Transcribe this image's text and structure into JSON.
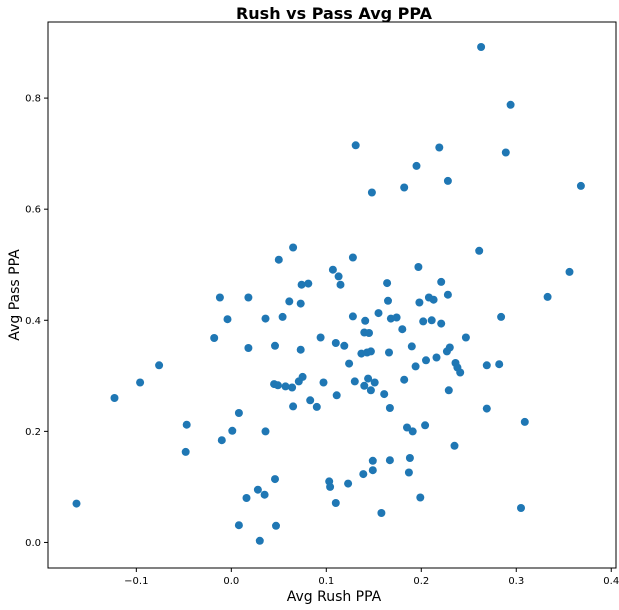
{
  "chart_data": {
    "type": "scatter",
    "title": "Rush vs Pass Avg PPA",
    "xlabel": "Avg Rush PPA",
    "ylabel": "Avg Pass PPA",
    "xlim": [
      -0.193,
      0.405
    ],
    "ylim": [
      -0.046,
      0.937
    ],
    "xticks": [
      -0.1,
      0.0,
      0.1,
      0.2,
      0.3,
      0.4
    ],
    "xtick_labels": [
      "−0.1",
      "0.0",
      "0.1",
      "0.2",
      "0.3",
      "0.4"
    ],
    "yticks": [
      0.0,
      0.2,
      0.4,
      0.6,
      0.8
    ],
    "ytick_labels": [
      "0.0",
      "0.2",
      "0.4",
      "0.6",
      "0.8"
    ],
    "grid": false,
    "marker_color": "#1f77b4",
    "series": [
      {
        "points": [
          [
            0.263,
            0.892
          ],
          [
            0.294,
            0.788
          ],
          [
            0.289,
            0.702
          ],
          [
            0.195,
            0.678
          ],
          [
            0.131,
            0.715
          ],
          [
            0.219,
            0.711
          ],
          [
            0.228,
            0.651
          ],
          [
            0.182,
            0.639
          ],
          [
            0.148,
            0.63
          ],
          [
            0.368,
            0.642
          ],
          [
            0.261,
            0.525
          ],
          [
            0.356,
            0.487
          ],
          [
            0.333,
            0.442
          ],
          [
            0.065,
            0.531
          ],
          [
            0.128,
            0.513
          ],
          [
            0.05,
            0.509
          ],
          [
            0.107,
            0.491
          ],
          [
            0.113,
            0.479
          ],
          [
            0.164,
            0.467
          ],
          [
            0.197,
            0.496
          ],
          [
            0.221,
            0.469
          ],
          [
            0.074,
            0.464
          ],
          [
            0.081,
            0.466
          ],
          [
            0.115,
            0.464
          ],
          [
            -0.012,
            0.441
          ],
          [
            0.018,
            0.441
          ],
          [
            0.061,
            0.434
          ],
          [
            0.073,
            0.43
          ],
          [
            0.165,
            0.435
          ],
          [
            0.198,
            0.432
          ],
          [
            0.208,
            0.441
          ],
          [
            0.213,
            0.437
          ],
          [
            0.228,
            0.446
          ],
          [
            0.284,
            0.406
          ],
          [
            -0.004,
            0.402
          ],
          [
            0.054,
            0.406
          ],
          [
            0.036,
            0.403
          ],
          [
            0.128,
            0.407
          ],
          [
            0.141,
            0.399
          ],
          [
            0.155,
            0.413
          ],
          [
            0.168,
            0.403
          ],
          [
            0.174,
            0.405
          ],
          [
            0.202,
            0.398
          ],
          [
            0.211,
            0.4
          ],
          [
            0.221,
            0.394
          ],
          [
            -0.018,
            0.368
          ],
          [
            0.018,
            0.35
          ],
          [
            0.046,
            0.354
          ],
          [
            0.094,
            0.369
          ],
          [
            0.11,
            0.359
          ],
          [
            0.119,
            0.354
          ],
          [
            0.14,
            0.378
          ],
          [
            0.145,
            0.377
          ],
          [
            0.137,
            0.34
          ],
          [
            0.143,
            0.342
          ],
          [
            0.147,
            0.344
          ],
          [
            0.166,
            0.342
          ],
          [
            0.18,
            0.384
          ],
          [
            0.19,
            0.353
          ],
          [
            0.227,
            0.344
          ],
          [
            0.23,
            0.351
          ],
          [
            0.247,
            0.369
          ],
          [
            0.073,
            0.347
          ],
          [
            0.124,
            0.322
          ],
          [
            0.194,
            0.317
          ],
          [
            0.205,
            0.328
          ],
          [
            0.216,
            0.333
          ],
          [
            0.236,
            0.323
          ],
          [
            0.238,
            0.315
          ],
          [
            0.241,
            0.306
          ],
          [
            0.269,
            0.319
          ],
          [
            0.282,
            0.321
          ],
          [
            -0.076,
            0.319
          ],
          [
            -0.096,
            0.288
          ],
          [
            -0.123,
            0.26
          ],
          [
            0.045,
            0.285
          ],
          [
            0.049,
            0.283
          ],
          [
            0.057,
            0.281
          ],
          [
            0.064,
            0.279
          ],
          [
            0.071,
            0.29
          ],
          [
            0.075,
            0.298
          ],
          [
            0.097,
            0.288
          ],
          [
            0.13,
            0.29
          ],
          [
            0.14,
            0.282
          ],
          [
            0.144,
            0.295
          ],
          [
            0.147,
            0.274
          ],
          [
            0.151,
            0.288
          ],
          [
            0.161,
            0.267
          ],
          [
            0.182,
            0.293
          ],
          [
            0.229,
            0.274
          ],
          [
            0.083,
            0.256
          ],
          [
            0.09,
            0.244
          ],
          [
            0.065,
            0.245
          ],
          [
            0.111,
            0.265
          ],
          [
            0.167,
            0.242
          ],
          [
            0.269,
            0.241
          ],
          [
            0.008,
            0.233
          ],
          [
            -0.047,
            0.212
          ],
          [
            0.001,
            0.201
          ],
          [
            -0.01,
            0.184
          ],
          [
            0.036,
            0.2
          ],
          [
            0.185,
            0.207
          ],
          [
            0.191,
            0.2
          ],
          [
            0.204,
            0.211
          ],
          [
            0.309,
            0.217
          ],
          [
            0.235,
            0.174
          ],
          [
            -0.048,
            0.163
          ],
          [
            0.149,
            0.147
          ],
          [
            0.167,
            0.148
          ],
          [
            0.188,
            0.152
          ],
          [
            0.149,
            0.13
          ],
          [
            0.139,
            0.123
          ],
          [
            0.187,
            0.126
          ],
          [
            0.046,
            0.114
          ],
          [
            0.103,
            0.11
          ],
          [
            0.123,
            0.106
          ],
          [
            0.104,
            0.1
          ],
          [
            0.028,
            0.095
          ],
          [
            0.035,
            0.086
          ],
          [
            0.016,
            0.08
          ],
          [
            0.199,
            0.081
          ],
          [
            -0.163,
            0.07
          ],
          [
            0.11,
            0.071
          ],
          [
            0.305,
            0.062
          ],
          [
            0.158,
            0.053
          ],
          [
            0.008,
            0.031
          ],
          [
            0.047,
            0.03
          ],
          [
            0.03,
            0.003
          ]
        ]
      }
    ]
  }
}
